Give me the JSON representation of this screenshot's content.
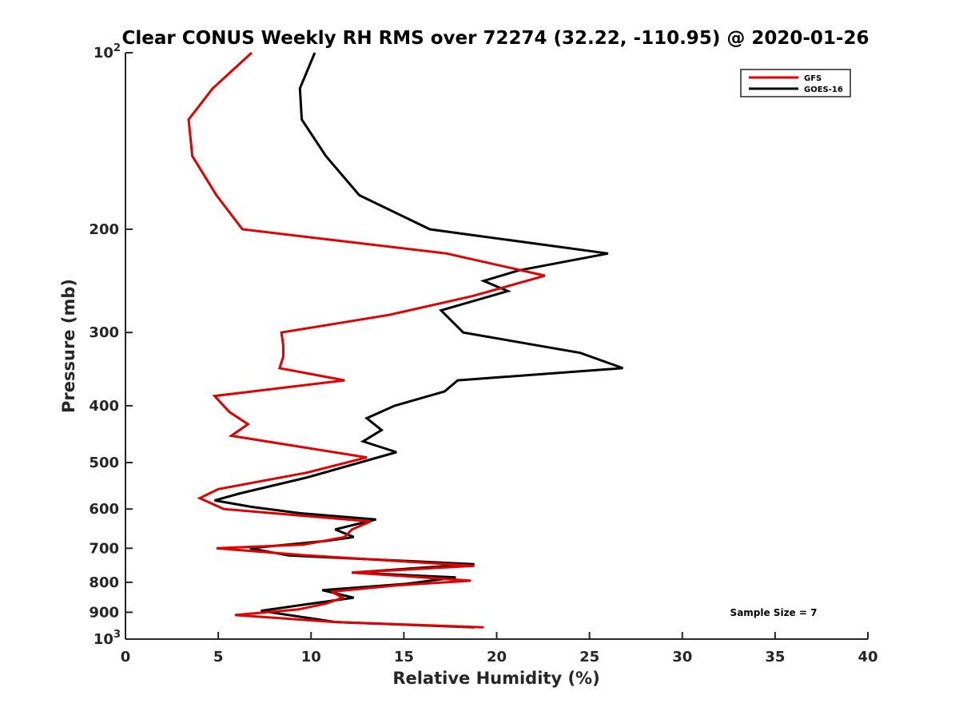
{
  "chart_data": {
    "type": "line",
    "title": "Clear CONUS Weekly RH RMS over 72274 (32.22, -110.95) @ 2020-01-26",
    "xlabel": "Relative Humidity (%)",
    "ylabel": "Pressure (mb)",
    "xlim": [
      0,
      40
    ],
    "ylim": [
      100,
      1000
    ],
    "y_scale": "log",
    "y_reversed": true,
    "grid": false,
    "legend_position": "top-right",
    "x_ticks": [
      "0",
      "5",
      "10",
      "15",
      "20",
      "25",
      "30",
      "35",
      "40"
    ],
    "y_ticks": [
      {
        "value": 100,
        "base": "10",
        "exp": "2"
      },
      {
        "value": 200,
        "label": "200"
      },
      {
        "value": 300,
        "label": "300"
      },
      {
        "value": 400,
        "label": "400"
      },
      {
        "value": 500,
        "label": "500"
      },
      {
        "value": 600,
        "label": "600"
      },
      {
        "value": 700,
        "label": "700"
      },
      {
        "value": 800,
        "label": "800"
      },
      {
        "value": 900,
        "label": "900"
      },
      {
        "value": 1000,
        "base": "10",
        "exp": "3"
      }
    ],
    "annotation": "Sample Size = 7",
    "series": [
      {
        "name": "GFS",
        "color": "#e00000",
        "points": [
          [
            6.8,
            100
          ],
          [
            4.7,
            115
          ],
          [
            3.4,
            130
          ],
          [
            3.6,
            150
          ],
          [
            4.9,
            175
          ],
          [
            6.3,
            200
          ],
          [
            17.3,
            220
          ],
          [
            22.6,
            240
          ],
          [
            18.7,
            260
          ],
          [
            14.2,
            280
          ],
          [
            8.4,
            300
          ],
          [
            8.5,
            315
          ],
          [
            8.5,
            330
          ],
          [
            8.3,
            345
          ],
          [
            11.8,
            362
          ],
          [
            4.8,
            385
          ],
          [
            5.6,
            410
          ],
          [
            6.6,
            430
          ],
          [
            5.7,
            450
          ],
          [
            13,
            490
          ],
          [
            9.8,
            520
          ],
          [
            5,
            555
          ],
          [
            4,
            575
          ],
          [
            5.3,
            600
          ],
          [
            13.2,
            630
          ],
          [
            12.2,
            650
          ],
          [
            11.8,
            670
          ],
          [
            9.6,
            690
          ],
          [
            4.9,
            700
          ],
          [
            9.8,
            720
          ],
          [
            18.8,
            750
          ],
          [
            12.2,
            770
          ],
          [
            18.6,
            795
          ],
          [
            14.6,
            810
          ],
          [
            11.1,
            830
          ],
          [
            11.7,
            850
          ],
          [
            10.8,
            870
          ],
          [
            9.3,
            890
          ],
          [
            5.9,
            910
          ],
          [
            11.3,
            935
          ],
          [
            19.3,
            955
          ]
        ]
      },
      {
        "name": "GOES-16",
        "color": "#000000",
        "points": [
          [
            10.2,
            100
          ],
          [
            9.4,
            115
          ],
          [
            9.5,
            130
          ],
          [
            10.8,
            150
          ],
          [
            12.6,
            175
          ],
          [
            16.4,
            200
          ],
          [
            26,
            220
          ],
          [
            21.2,
            235
          ],
          [
            19.3,
            245
          ],
          [
            20.6,
            255
          ],
          [
            17,
            275
          ],
          [
            18.2,
            300
          ],
          [
            24.5,
            325
          ],
          [
            26.8,
            345
          ],
          [
            17.9,
            362
          ],
          [
            17.2,
            378
          ],
          [
            14.5,
            400
          ],
          [
            13,
            420
          ],
          [
            13.8,
            440
          ],
          [
            12.8,
            460
          ],
          [
            14.6,
            480
          ],
          [
            9.8,
            530
          ],
          [
            6.1,
            565
          ],
          [
            4.8,
            580
          ],
          [
            6.8,
            595
          ],
          [
            9.4,
            610
          ],
          [
            13.5,
            625
          ],
          [
            11.3,
            650
          ],
          [
            12.3,
            670
          ],
          [
            10.8,
            680
          ],
          [
            6.7,
            700
          ],
          [
            8.8,
            720
          ],
          [
            18.8,
            745
          ],
          [
            12.2,
            770
          ],
          [
            17.8,
            785
          ],
          [
            15.1,
            805
          ],
          [
            10.6,
            825
          ],
          [
            12.3,
            850
          ],
          [
            10,
            870
          ],
          [
            7.3,
            895
          ],
          [
            11.3,
            935
          ],
          [
            18.8,
            955
          ]
        ]
      }
    ]
  }
}
